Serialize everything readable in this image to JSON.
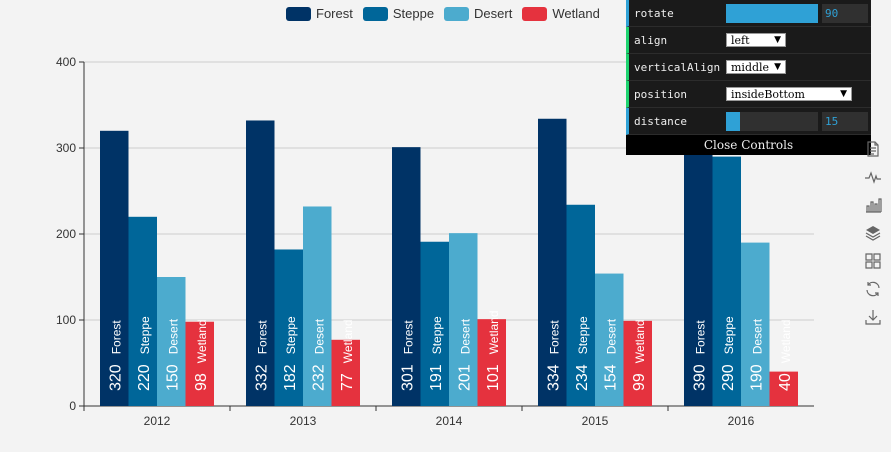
{
  "chart_data": {
    "type": "bar",
    "categories": [
      "2012",
      "2013",
      "2014",
      "2015",
      "2016"
    ],
    "series": [
      {
        "name": "Forest",
        "color": "#003366",
        "values": [
          320,
          332,
          301,
          334,
          390
        ]
      },
      {
        "name": "Steppe",
        "color": "#006699",
        "values": [
          220,
          182,
          191,
          234,
          290
        ]
      },
      {
        "name": "Desert",
        "color": "#4cabce",
        "values": [
          150,
          232,
          201,
          154,
          190
        ]
      },
      {
        "name": "Wetland",
        "color": "#e5323e",
        "values": [
          98,
          77,
          101,
          99,
          40
        ]
      }
    ],
    "ylim": [
      0,
      400
    ],
    "yticks": [
      0,
      100,
      200,
      300,
      400
    ],
    "grid": true,
    "legend_position": "top",
    "label_rotate": 90,
    "label_position": "insideBottom",
    "label_distance": 15
  },
  "controls": {
    "rotate": {
      "label": "rotate",
      "value": "90",
      "fraction": 1.0
    },
    "align": {
      "label": "align",
      "value": "left"
    },
    "verticalAlign": {
      "label": "verticalAlign",
      "value": "middle"
    },
    "position": {
      "label": "position",
      "value": "insideBottom"
    },
    "distance": {
      "label": "distance",
      "value": "15",
      "fraction": 0.15
    },
    "close_label": "Close Controls"
  },
  "toolbox": [
    "data-view-icon",
    "line-chart-icon",
    "bar-chart-icon",
    "stack-icon",
    "tiled-icon",
    "restore-icon",
    "save-image-icon"
  ]
}
